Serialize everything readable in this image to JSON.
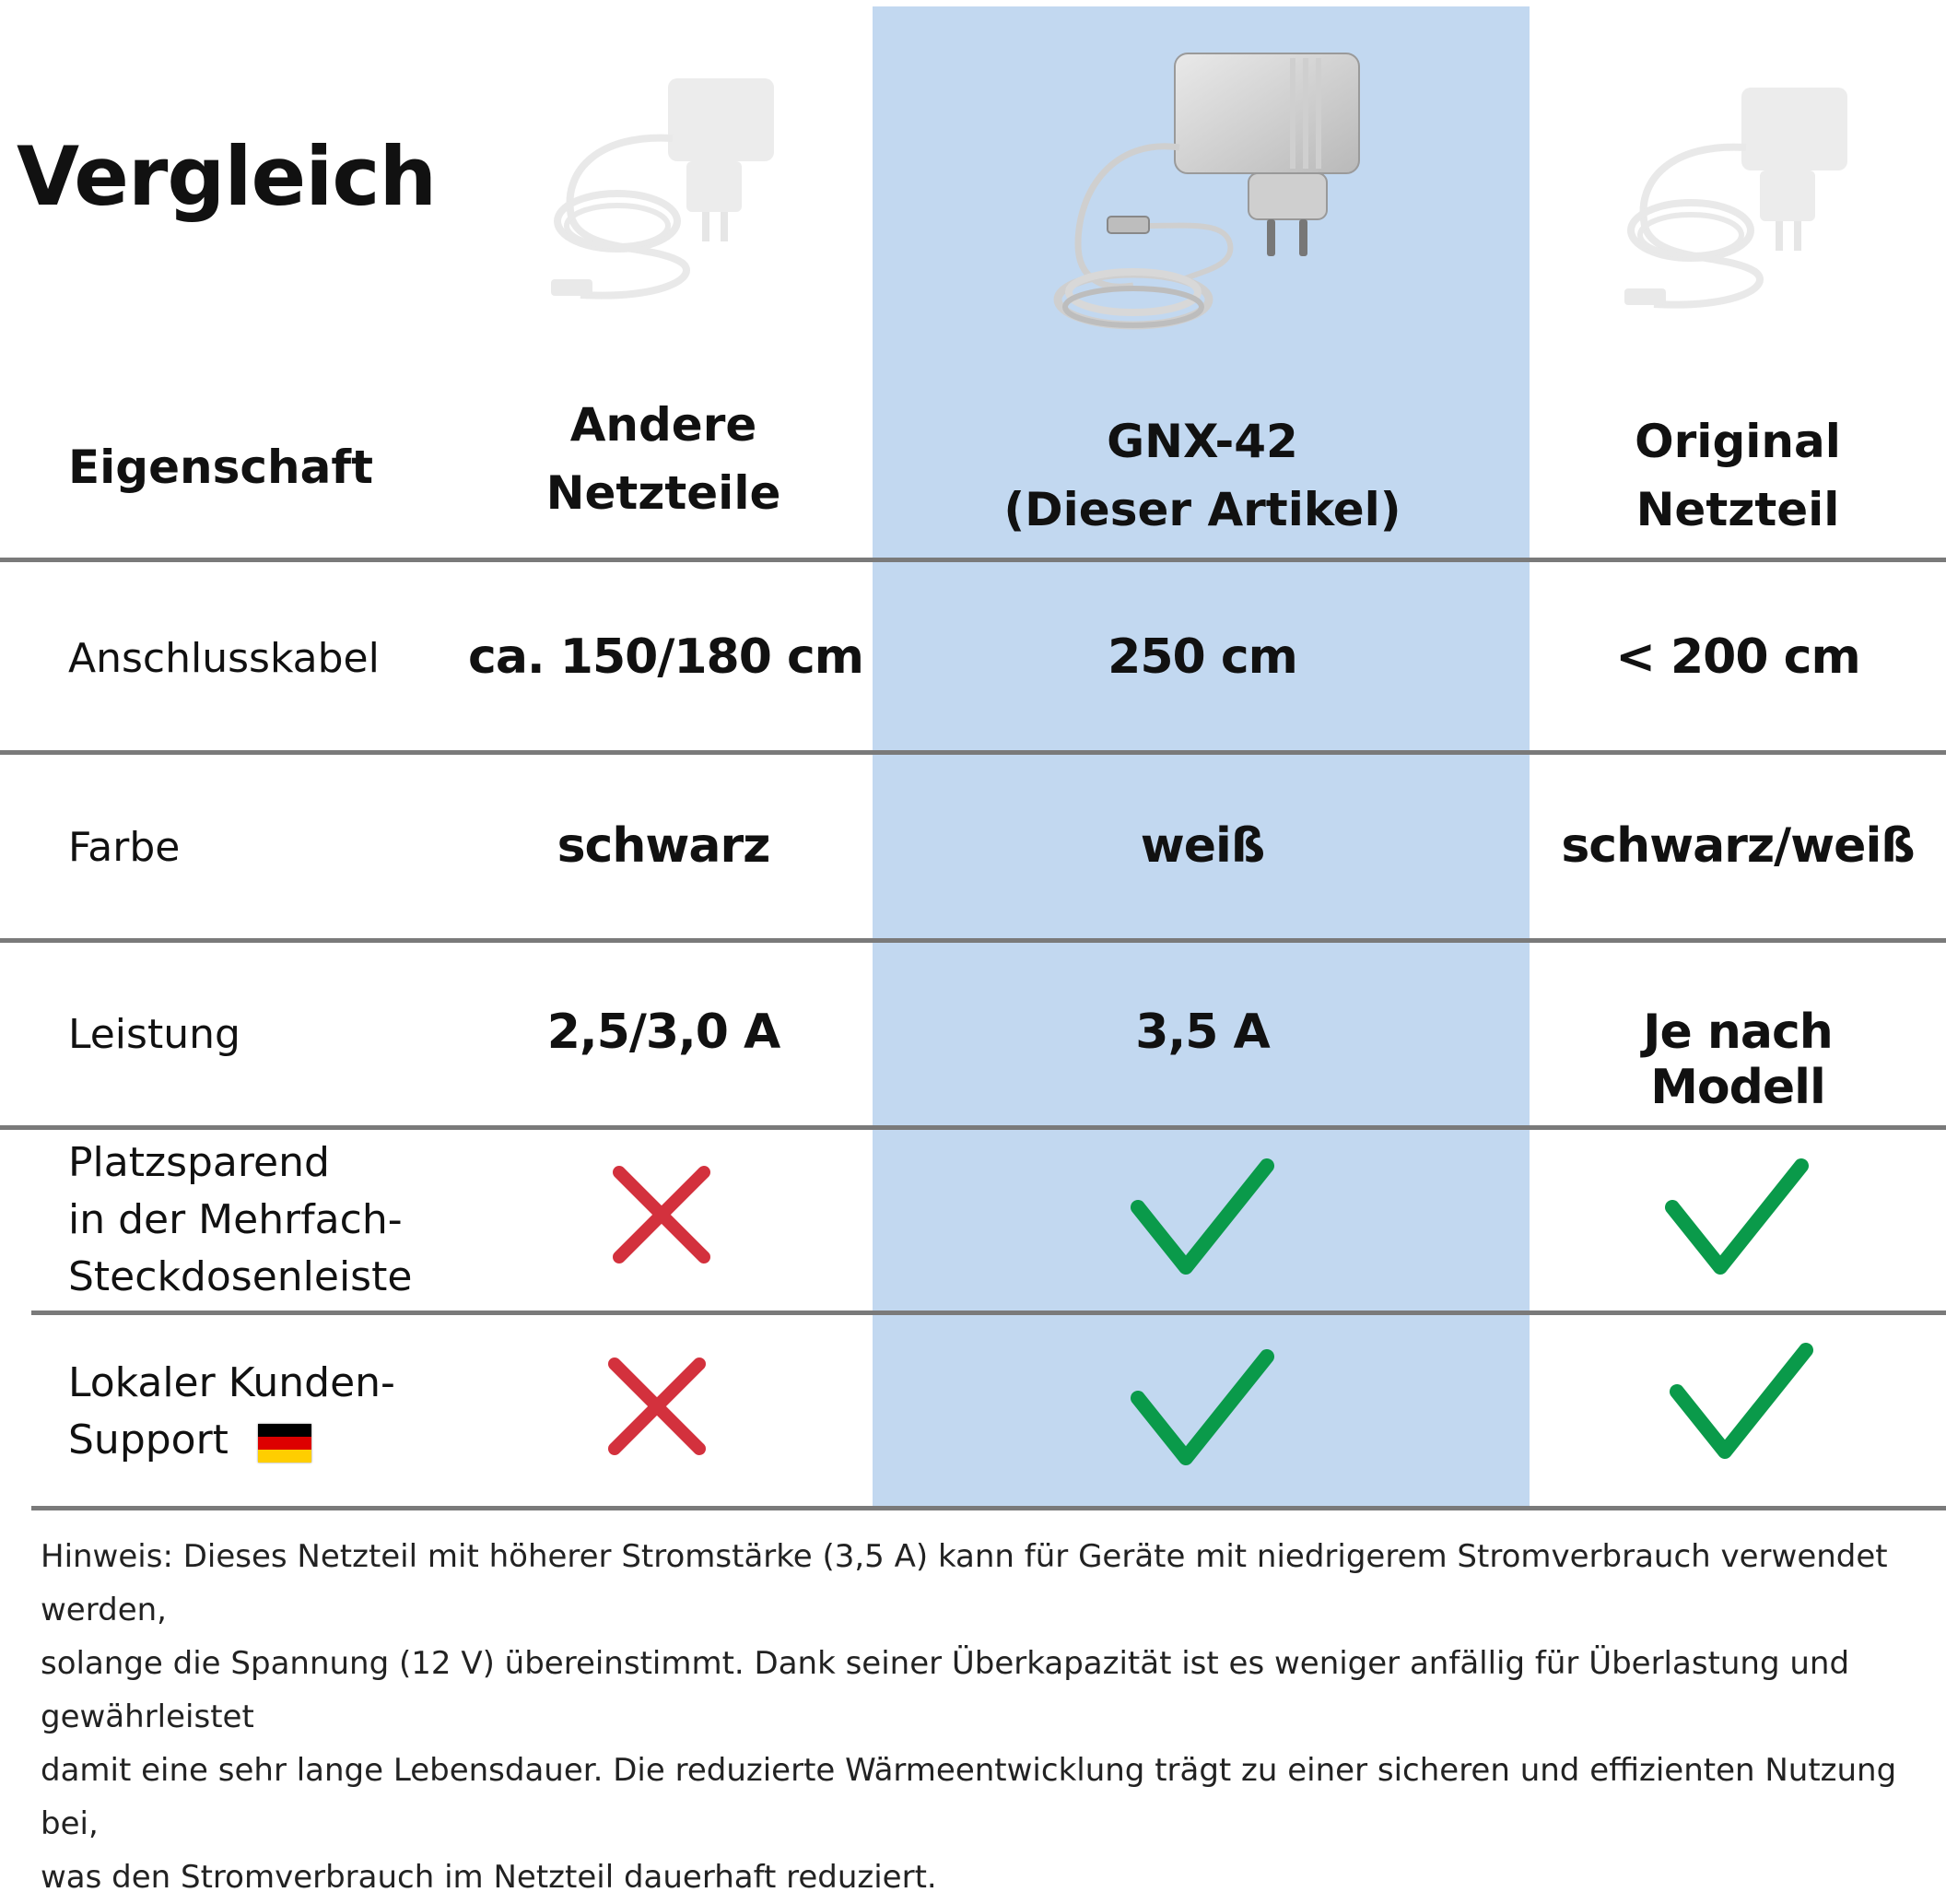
{
  "title": "Vergleich",
  "header": {
    "property": "Eigenschaft",
    "col1": [
      "Andere",
      "Netzteile"
    ],
    "col2": [
      "GNX-42",
      "(Dieser Artikel)"
    ],
    "col3": [
      "Original",
      "Netzteil"
    ]
  },
  "rows": [
    {
      "label": [
        "Anschlusskabel"
      ],
      "values": [
        "ca. 150/180 cm",
        "250 cm",
        "< 200 cm"
      ]
    },
    {
      "label": [
        "Farbe"
      ],
      "values": [
        "schwarz",
        "weiß",
        "schwarz/weiß"
      ]
    },
    {
      "label": [
        "Leistung"
      ],
      "values": [
        "2,5/3,0 A",
        "3,5 A",
        "Je nach Modell"
      ]
    },
    {
      "label": [
        "Platzsparend",
        "in der Mehrfach-",
        "Steckdosenleiste"
      ],
      "marks": [
        "cross-icon",
        "check-icon",
        "check-icon"
      ]
    },
    {
      "label": [
        "Lokaler Kunden-",
        "Support"
      ],
      "marks": [
        "cross-icon",
        "check-icon",
        "check-icon"
      ]
    }
  ],
  "note": [
    "Hinweis: Dieses Netzteil mit höherer Stromstärke (3,5 A) kann für Geräte mit niedrigerem Stromverbrauch verwendet werden,",
    "solange die Spannung (12 V) übereinstimmt. Dank seiner Überkapazität ist es weniger anfällig für Überlastung und gewährleistet",
    "damit eine sehr lange Lebensdauer. Die reduzierte Wärmeentwicklung trägt zu einer sicheren und effizienten Nutzung bei,",
    "was den Stromverbrauch im Netzteil dauerhaft reduziert."
  ],
  "colors": {
    "highlight": "#c2d8f0",
    "check": "#0a9a4a",
    "cross": "#d3313d",
    "rule": "#7a7a7a"
  }
}
